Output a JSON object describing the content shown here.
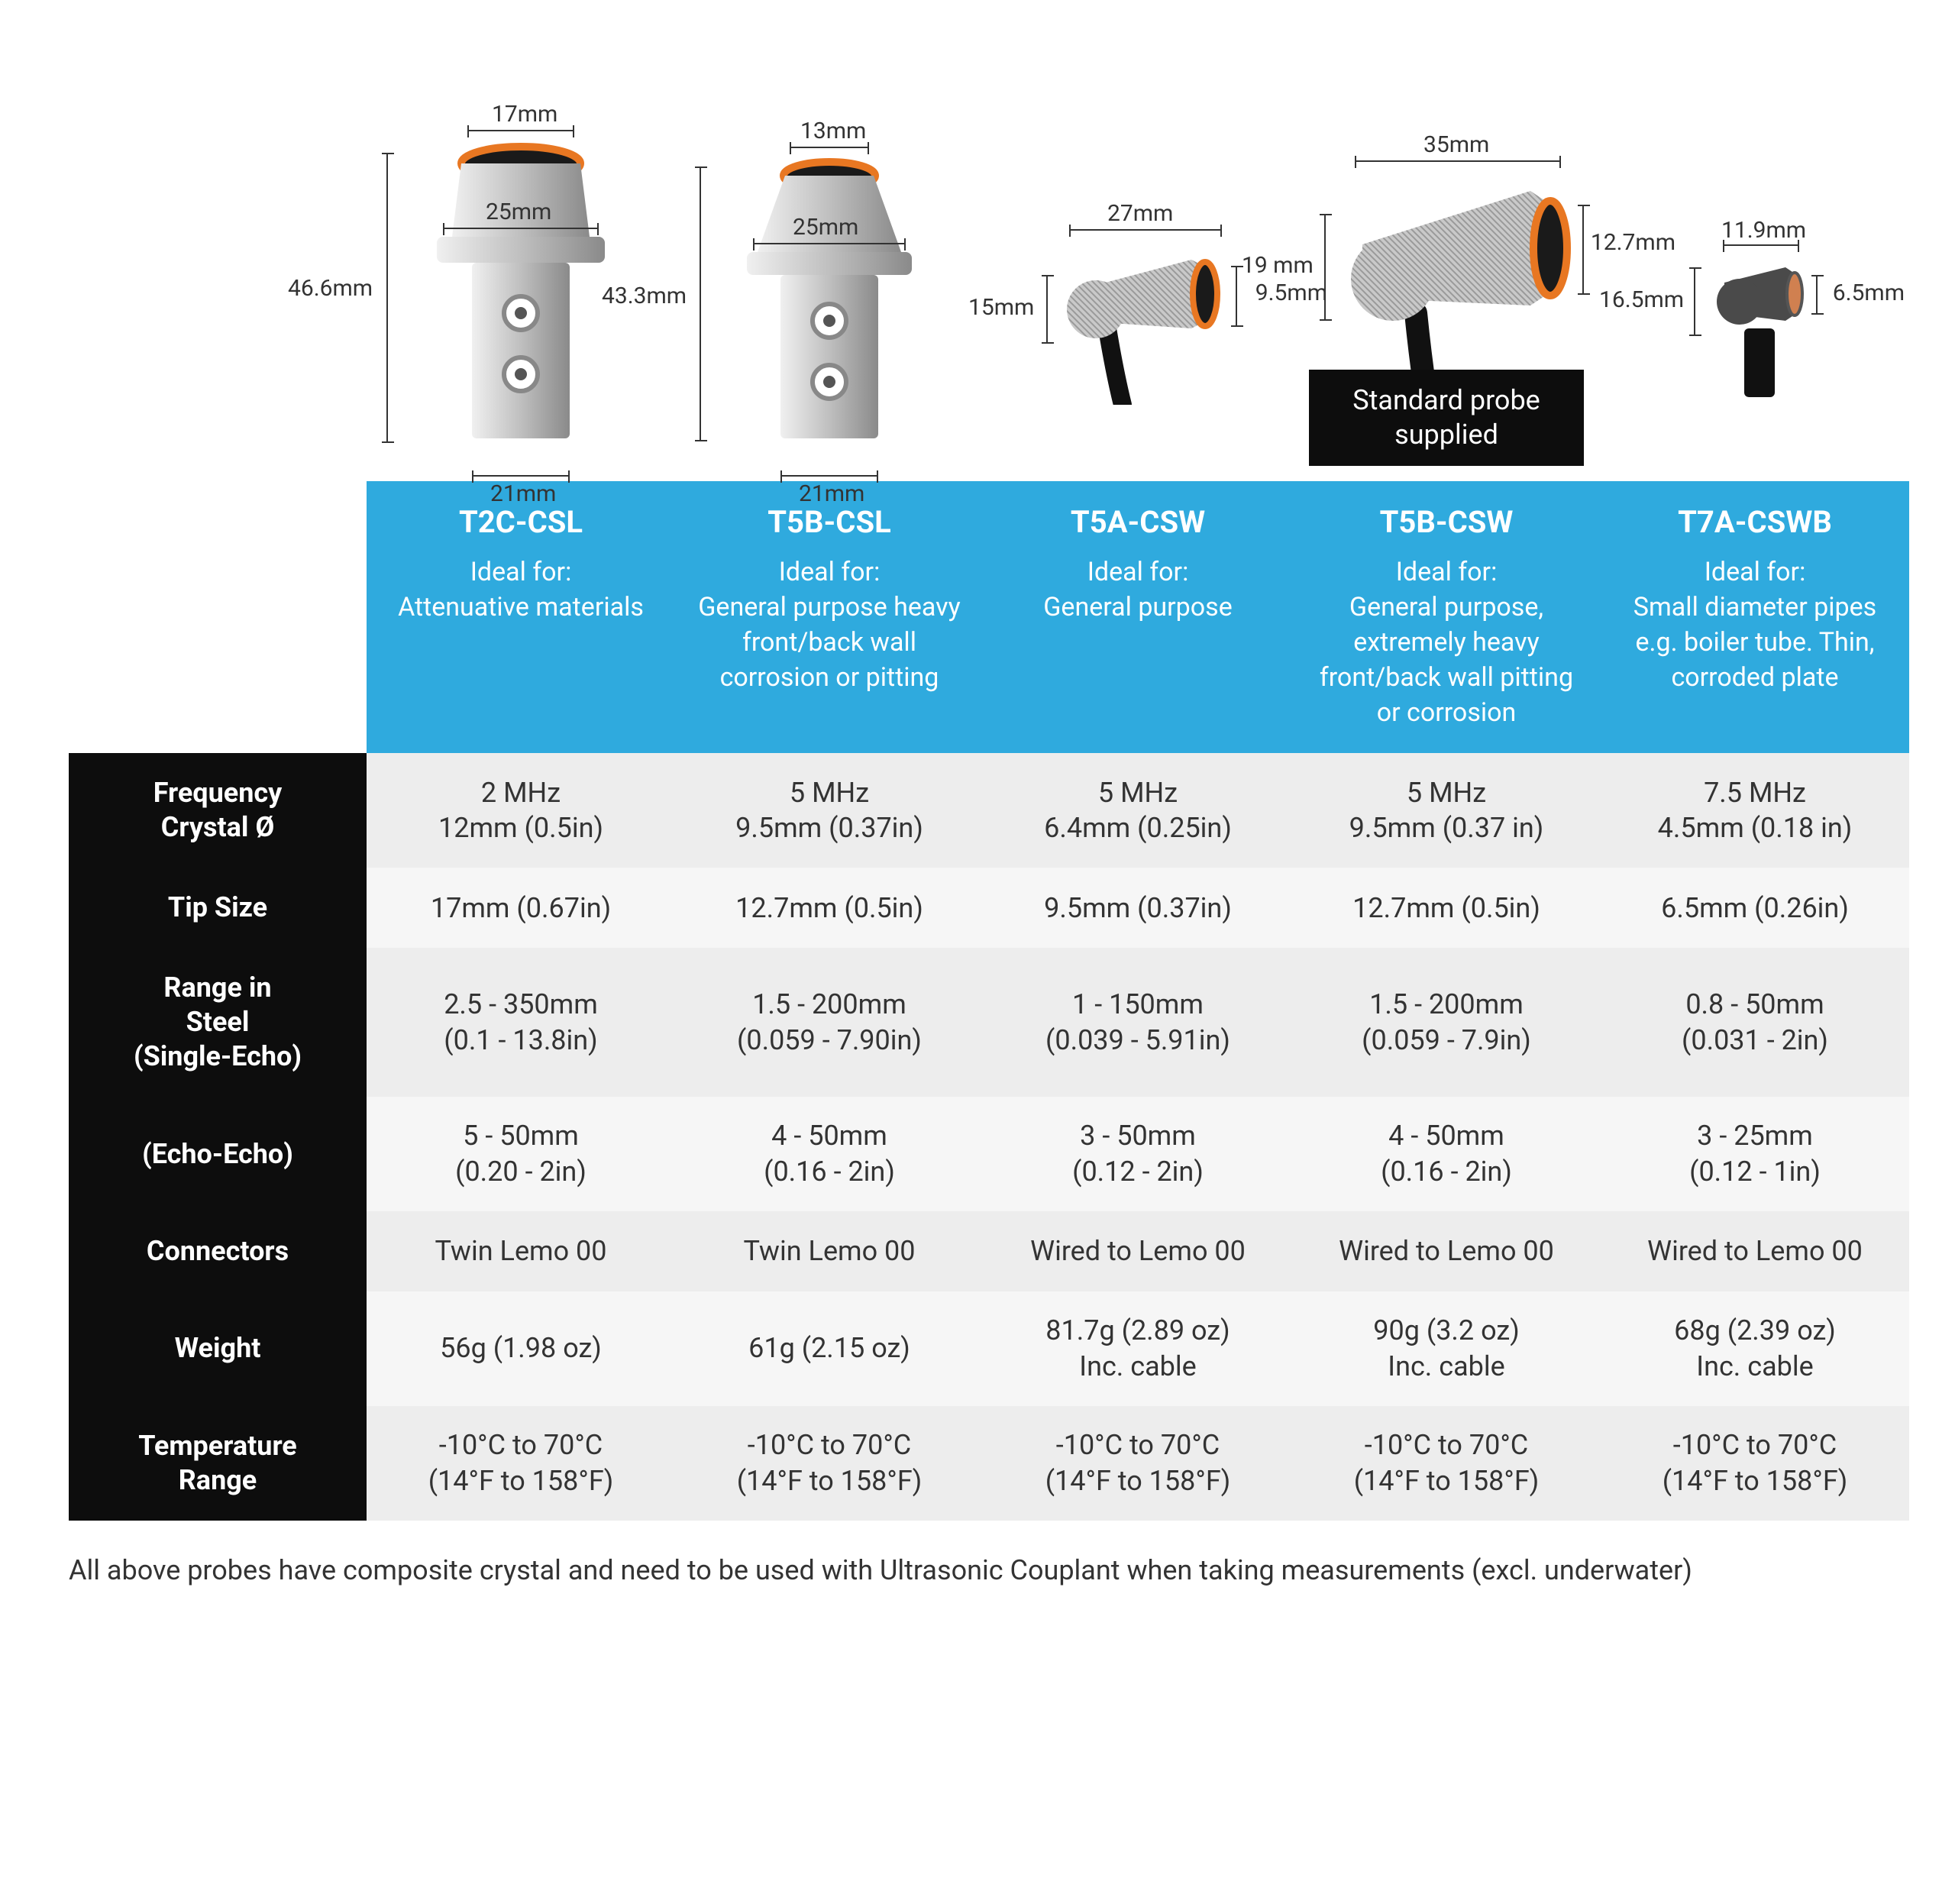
{
  "colors": {
    "header_bg": "#2faade",
    "rowhdr_bg": "#0d0d0d",
    "row_even": "#ededed",
    "row_odd": "#f6f6f6",
    "accent_orange": "#e87722",
    "steel_light": "#d9d9d9",
    "steel_mid": "#bfbfbf",
    "steel_dark": "#8a8a8a",
    "text": "#333333"
  },
  "badge": "Standard probe supplied",
  "probes": [
    {
      "model": "T2C-CSL",
      "ideal_prefix": "Ideal for:",
      "ideal": "Attenuative materials",
      "dims": {
        "top": "17mm",
        "flange": "25mm",
        "height": "46.6mm",
        "base": "21mm"
      }
    },
    {
      "model": "T5B-CSL",
      "ideal_prefix": "Ideal for:",
      "ideal": "General purpose heavy front/back wall corrosion or pitting",
      "dims": {
        "top": "13mm",
        "flange": "25mm",
        "height": "43.3mm",
        "base": "21mm"
      }
    },
    {
      "model": "T5A-CSW",
      "ideal_prefix": "Ideal for:",
      "ideal": "General purpose",
      "dims": {
        "width": "27mm",
        "height": "15mm",
        "tip": "9.5mm"
      }
    },
    {
      "model": "T5B-CSW",
      "ideal_prefix": "Ideal for:",
      "ideal": "General purpose, extremely heavy front/back wall pitting or corrosion",
      "dims": {
        "width": "35mm",
        "height": "19 mm",
        "tip": "12.7mm"
      }
    },
    {
      "model": "T7A-CSWB",
      "ideal_prefix": "Ideal for:",
      "ideal": "Small diameter pipes e.g. boiler tube. Thin, corroded plate",
      "dims": {
        "width": "11.9mm",
        "height": "16.5mm",
        "tip": "6.5mm"
      }
    }
  ],
  "rows": [
    {
      "label": "Frequency\nCrystal Ø",
      "cells": [
        "2 MHz\n12mm (0.5in)",
        "5 MHz\n9.5mm (0.37in)",
        "5 MHz\n6.4mm (0.25in)",
        "5 MHz\n9.5mm (0.37 in)",
        "7.5 MHz\n4.5mm (0.18 in)"
      ]
    },
    {
      "label": "Tip Size",
      "cells": [
        "17mm (0.67in)",
        "12.7mm (0.5in)",
        "9.5mm (0.37in)",
        "12.7mm (0.5in)",
        "6.5mm (0.26in)"
      ]
    },
    {
      "label": "Range in\nSteel\n(Single-Echo)",
      "cells": [
        "2.5 - 350mm\n(0.1 - 13.8in)",
        "1.5 - 200mm\n(0.059 - 7.90in)",
        "1 - 150mm\n(0.039 - 5.91in)",
        "1.5 - 200mm\n(0.059 - 7.9in)",
        "0.8 - 50mm\n(0.031 - 2in)"
      ]
    },
    {
      "label": "(Echo-Echo)",
      "cells": [
        "5 - 50mm\n(0.20 - 2in)",
        "4 - 50mm\n(0.16 - 2in)",
        "3 - 50mm\n(0.12 - 2in)",
        "4 - 50mm\n(0.16 - 2in)",
        "3 - 25mm\n(0.12 - 1in)"
      ]
    },
    {
      "label": "Connectors",
      "cells": [
        "Twin Lemo 00",
        "Twin Lemo 00",
        "Wired to Lemo 00",
        "Wired to Lemo 00",
        "Wired to Lemo 00"
      ]
    },
    {
      "label": "Weight",
      "cells": [
        "56g (1.98 oz)",
        "61g (2.15 oz)",
        "81.7g (2.89 oz)\nInc. cable",
        "90g (3.2 oz)\nInc. cable",
        "68g (2.39 oz)\nInc. cable"
      ]
    },
    {
      "label": "Temperature\nRange",
      "cells": [
        "-10°C to 70°C\n(14°F to 158°F)",
        "-10°C to 70°C\n(14°F to 158°F)",
        "-10°C to 70°C\n(14°F to 158°F)",
        "-10°C to 70°C\n(14°F to 158°F)",
        "-10°C to 70°C\n(14°F to 158°F)"
      ]
    }
  ],
  "footnote": "All above probes have composite crystal and need to be used with Ultrasonic Couplant when taking measurements (excl. underwater)"
}
